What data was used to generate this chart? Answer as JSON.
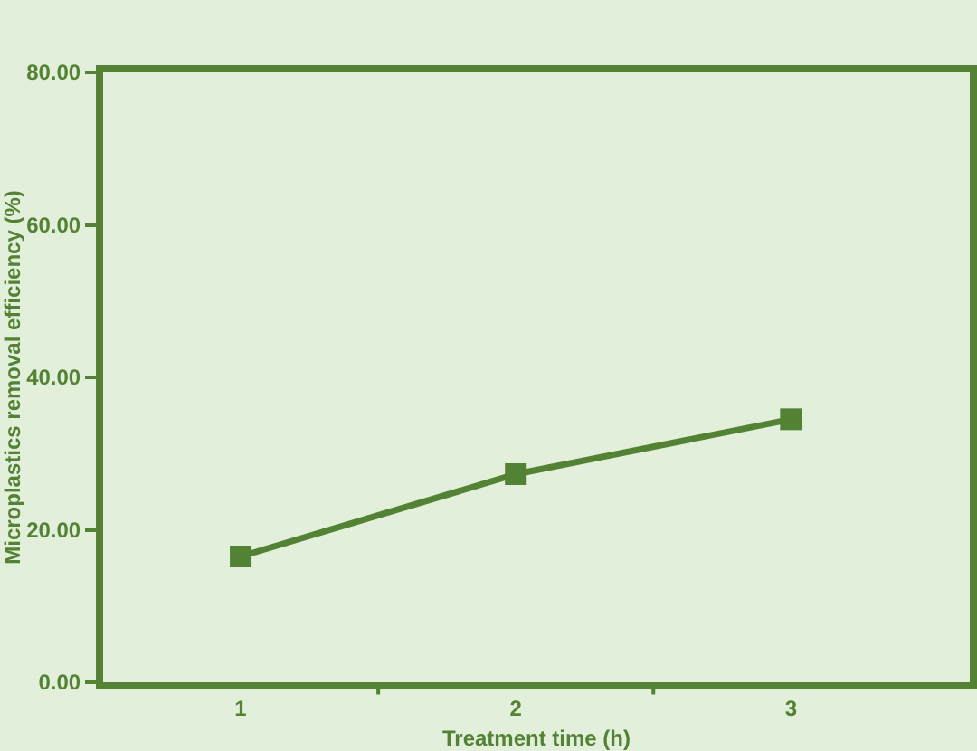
{
  "chart_data": {
    "type": "line",
    "xlabel": "Treatment time (h)",
    "ylabel": "Microplastics removal efficiency (%)",
    "categories": [
      "1",
      "2",
      "3"
    ],
    "series": [
      {
        "color": "#548235",
        "values": [
          16.5,
          27.3,
          34.5
        ]
      }
    ],
    "ylim": [
      0,
      80
    ],
    "yticks": [
      {
        "value": 0,
        "label": "0.00"
      },
      {
        "value": 20,
        "label": "20.00"
      },
      {
        "value": 40,
        "label": "40.00"
      },
      {
        "value": 60,
        "label": "60.00"
      },
      {
        "value": 80,
        "label": "80.00"
      }
    ],
    "marker": "square",
    "line_style": "solid",
    "grid": false,
    "legend": false
  }
}
